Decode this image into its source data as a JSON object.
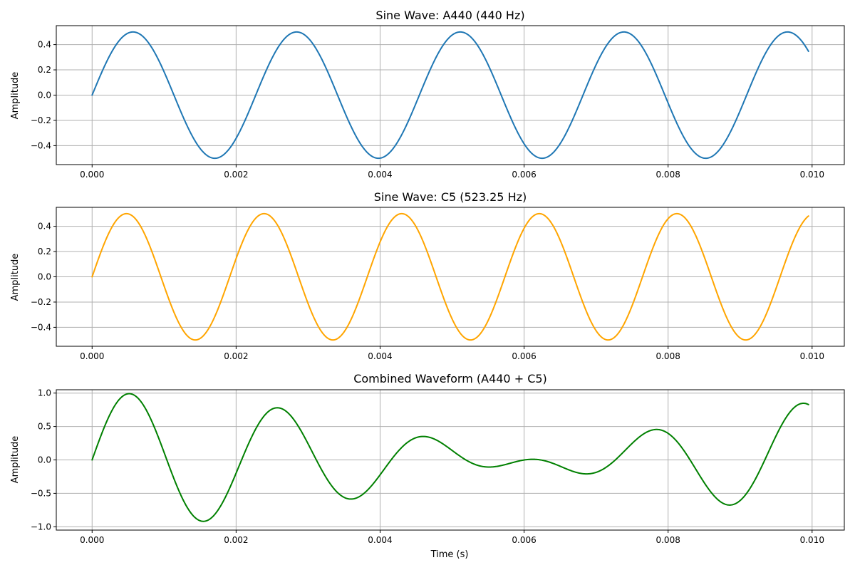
{
  "chart_data": [
    {
      "type": "line",
      "title": "Sine Wave: A440 (440 Hz)",
      "xlabel": "",
      "ylabel": "Amplitude",
      "xlim": [
        -0.0004975,
        0.0104475
      ],
      "ylim": [
        -0.55,
        0.55
      ],
      "xticks": [
        0.0,
        0.002,
        0.004,
        0.006,
        0.008,
        0.01
      ],
      "xtick_labels": [
        "0.000",
        "0.002",
        "0.004",
        "0.006",
        "0.008",
        "0.010"
      ],
      "yticks": [
        -0.4,
        -0.2,
        0.0,
        0.2,
        0.4
      ],
      "ytick_labels": [
        "−0.4",
        "−0.2",
        "0.0",
        "0.2",
        "0.4"
      ],
      "grid": true,
      "series": [
        {
          "color": "#1f77b4",
          "generator": "sine",
          "components": [
            {
              "amplitude": 0.5,
              "frequency": 440
            }
          ],
          "x_start": 0.0,
          "x_end": 0.00995
        }
      ]
    },
    {
      "type": "line",
      "title": "Sine Wave: C5 (523.25 Hz)",
      "xlabel": "",
      "ylabel": "Amplitude",
      "xlim": [
        -0.0004975,
        0.0104475
      ],
      "ylim": [
        -0.55,
        0.55
      ],
      "xticks": [
        0.0,
        0.002,
        0.004,
        0.006,
        0.008,
        0.01
      ],
      "xtick_labels": [
        "0.000",
        "0.002",
        "0.004",
        "0.006",
        "0.008",
        "0.010"
      ],
      "yticks": [
        -0.4,
        -0.2,
        0.0,
        0.2,
        0.4
      ],
      "ytick_labels": [
        "−0.4",
        "−0.2",
        "0.0",
        "0.2",
        "0.4"
      ],
      "grid": true,
      "series": [
        {
          "color": "#ffa500",
          "generator": "sine",
          "components": [
            {
              "amplitude": 0.5,
              "frequency": 523.25
            }
          ],
          "x_start": 0.0,
          "x_end": 0.00995
        }
      ]
    },
    {
      "type": "line",
      "title": "Combined Waveform (A440 + C5)",
      "xlabel": "Time (s)",
      "ylabel": "Amplitude",
      "xlim": [
        -0.0004975,
        0.0104475
      ],
      "ylim": [
        -1.05,
        1.05
      ],
      "xticks": [
        0.0,
        0.002,
        0.004,
        0.006,
        0.008,
        0.01
      ],
      "xtick_labels": [
        "0.000",
        "0.002",
        "0.004",
        "0.006",
        "0.008",
        "0.010"
      ],
      "yticks": [
        -1.0,
        -0.5,
        0.0,
        0.5,
        1.0
      ],
      "ytick_labels": [
        "−1.0",
        "−0.5",
        "0.0",
        "0.5",
        "1.0"
      ],
      "grid": true,
      "series": [
        {
          "color": "#008000",
          "generator": "sine",
          "components": [
            {
              "amplitude": 0.5,
              "frequency": 440
            },
            {
              "amplitude": 0.5,
              "frequency": 523.25
            }
          ],
          "x_start": 0.0,
          "x_end": 0.00995
        }
      ]
    }
  ]
}
